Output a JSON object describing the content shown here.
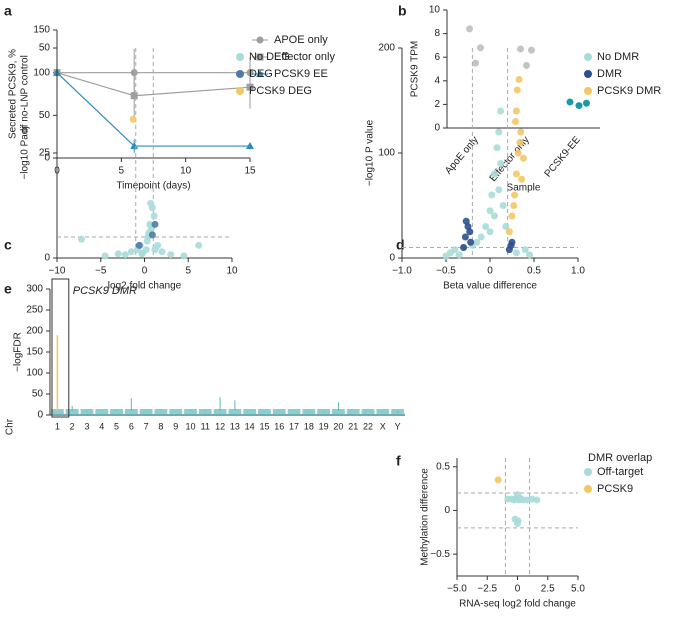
{
  "chart_data": [
    {
      "type": "line",
      "panel": "a",
      "ylabel": [
        "Secreted PCSK9, %",
        "of no-LNP control"
      ],
      "xlabel": "Timepoint (days)",
      "x": [
        0,
        6,
        15
      ],
      "xlim": [
        0,
        15
      ],
      "xticks": [
        0,
        5,
        10,
        15
      ],
      "ylim": [
        0,
        150
      ],
      "yticks": [
        0,
        50,
        100,
        150
      ],
      "series": [
        {
          "name": "APOE only",
          "color": "#9e9e9e",
          "marker": "circle",
          "values": [
            100,
            100,
            100
          ],
          "errors": [
            0,
            28,
            18
          ]
        },
        {
          "name": "Effector only",
          "color": "#9e9e9e",
          "marker": "square",
          "values": [
            100,
            73,
            83
          ],
          "errors": [
            0,
            25,
            25
          ]
        },
        {
          "name": "PCSK9 EE",
          "color": "#2b8cbe",
          "marker": "triangle",
          "values": [
            100,
            14,
            14
          ],
          "errors": [
            0,
            8,
            4
          ]
        }
      ]
    },
    {
      "type": "strip",
      "panel": "b",
      "ylabel": "PCSK9 TPM",
      "xlabel": "Sample",
      "categories": [
        "ApoE only",
        "Effector only",
        "PCSK9-EE"
      ],
      "colors": [
        "#c4c4c4",
        "#c4c4c4",
        "#1a9aa8"
      ],
      "values": [
        [
          8.4,
          6.8,
          5.5
        ],
        [
          6.7,
          6.6,
          5.3
        ],
        [
          2.2,
          2.1,
          1.9
        ]
      ],
      "ylim": [
        0,
        10
      ],
      "yticks": [
        0,
        2,
        4,
        6,
        8,
        10
      ]
    },
    {
      "type": "scatter",
      "panel": "c",
      "ylabel": "−log10 Padj",
      "xlabel": "log2 fold change",
      "xlim": [
        -10,
        10
      ],
      "xticks": [
        {
          "value": -10,
          "label": "−10"
        },
        {
          "value": -5,
          "label": "−5"
        },
        0,
        5,
        10
      ],
      "ylim": [
        0,
        50
      ],
      "yticks": [
        0,
        25,
        50
      ],
      "vlines": [
        -1,
        1
      ],
      "hlines": [
        5
      ],
      "series": [
        {
          "name": "No DEG",
          "color": "#a9dcd9",
          "x": [
            -7.2,
            -4.5,
            -3,
            -2.2,
            -1.5,
            -0.8,
            -0.5,
            -0.3,
            0.2,
            0.5,
            0.7,
            0.9,
            1.1,
            1.5,
            2,
            3,
            4.5,
            6.2,
            0.3,
            0.6,
            0.8,
            -0.2,
            0.4,
            1.2
          ],
          "values": [
            4.5,
            0.5,
            1,
            0.8,
            1.5,
            2,
            3,
            1,
            2,
            6,
            13,
            12,
            10,
            3,
            1.5,
            0.8,
            0.5,
            3,
            4,
            8,
            7,
            1.2,
            5,
            2
          ]
        },
        {
          "name": "DEG",
          "color": "#4f7ba8",
          "x": [
            1.2,
            0.9,
            -0.6
          ],
          "values": [
            8,
            5.5,
            3
          ]
        },
        {
          "name": "PCSK9 DEG",
          "color": "#f3c764",
          "x": [
            -1.3
          ],
          "values": [
            33
          ]
        }
      ]
    },
    {
      "type": "scatter",
      "panel": "d",
      "ylabel": "−log10 P value",
      "xlabel": "Beta value difference",
      "xlim": [
        -1,
        1
      ],
      "xticks": [
        {
          "value": -1,
          "label": "−1.0"
        },
        {
          "value": -0.5,
          "label": "−0.5"
        },
        0,
        0.5,
        {
          "value": 1,
          "label": "1.0"
        }
      ],
      "ylim": [
        0,
        200
      ],
      "yticks": [
        0,
        100,
        200
      ],
      "vlines": [
        -0.2,
        0.2
      ],
      "hlines": [
        10
      ],
      "series": [
        {
          "name": "No DMR",
          "color": "#a9dcd9",
          "x": [
            -0.5,
            -0.45,
            -0.4,
            -0.35,
            -0.3,
            -0.15,
            -0.1,
            -0.05,
            0,
            0.02,
            0.05,
            0.08,
            0.1,
            0.12,
            0.15,
            0.18,
            0.1,
            0.05,
            0.3,
            0.4,
            0.45,
            -0.2,
            0.0,
            0.12
          ],
          "values": [
            2,
            5,
            8,
            3,
            10,
            15,
            20,
            30,
            45,
            60,
            80,
            105,
            120,
            90,
            50,
            30,
            65,
            40,
            5,
            8,
            3,
            12,
            25,
            140
          ]
        },
        {
          "name": "DMR",
          "color": "#2d4f8e",
          "x": [
            -0.3,
            -0.28,
            -0.25,
            -0.23,
            -0.22,
            -0.27,
            0.22,
            0.24,
            0.25
          ],
          "values": [
            10,
            20,
            30,
            25,
            15,
            35,
            8,
            12,
            15
          ]
        },
        {
          "name": "PCSK9 DMR",
          "color": "#f3c764",
          "x": [
            0.22,
            0.25,
            0.28,
            0.3,
            0.32,
            0.35,
            0.38,
            0.3,
            0.33,
            0.36,
            0.27,
            0.34,
            0.31,
            0.29
          ],
          "values": [
            25,
            40,
            60,
            80,
            100,
            120,
            95,
            140,
            170,
            75,
            50,
            110,
            160,
            130
          ]
        }
      ]
    },
    {
      "type": "manhattan",
      "panel": "e",
      "ylabel": "−logFDR",
      "xlabel": "Chr",
      "color": "#5bb8bd",
      "highlight_color": "#f3c764",
      "annotation": "PCSK9 DMR",
      "categories": [
        "1",
        "2",
        "3",
        "4",
        "5",
        "6",
        "7",
        "8",
        "9",
        "10",
        "11",
        "12",
        "13",
        "14",
        "15",
        "16",
        "17",
        "18",
        "19",
        "20",
        "21",
        "22",
        "X",
        "Y"
      ],
      "values": [
        190,
        22,
        8,
        10,
        12,
        40,
        8,
        10,
        10,
        12,
        12,
        42,
        35,
        10,
        10,
        12,
        10,
        8,
        8,
        30,
        10,
        10,
        8,
        5
      ],
      "ylim": [
        0,
        300
      ],
      "yticks": [
        0,
        50,
        100,
        150,
        200,
        250,
        300
      ]
    },
    {
      "type": "scatter",
      "panel": "f",
      "ylabel": "Methylation difference",
      "xlabel": "RNA-seq log2 fold change",
      "legend_title": "DMR overlap",
      "xlim": [
        -5,
        5
      ],
      "xticks": [
        {
          "value": -5,
          "label": "−5.0"
        },
        {
          "value": -2.5,
          "label": "−2.5"
        },
        0,
        2.5,
        {
          "value": 5,
          "label": "5.0"
        }
      ],
      "ylim": [
        -0.75,
        0.6
      ],
      "yticks": [
        {
          "value": -0.5,
          "label": "−0.5"
        },
        0,
        0.5
      ],
      "vlines": [
        -1,
        1
      ],
      "hlines": [
        -0.2,
        0.2
      ],
      "series": [
        {
          "name": "Off-target",
          "color": "#a9dcd9",
          "x": [
            -0.8,
            -0.5,
            -0.3,
            -0.1,
            0,
            0.1,
            0.3,
            0.5,
            0.8,
            1.2,
            1.6,
            0.2,
            -0.2,
            0.05,
            0
          ],
          "values": [
            0.13,
            0.13,
            0.12,
            0.14,
            0.18,
            0.12,
            0.13,
            0.12,
            0.12,
            0.13,
            0.12,
            0.14,
            -0.1,
            -0.12,
            -0.15
          ]
        },
        {
          "name": "PCSK9",
          "color": "#f3c764",
          "x": [
            -1.6
          ],
          "values": [
            0.35
          ]
        }
      ]
    }
  ]
}
